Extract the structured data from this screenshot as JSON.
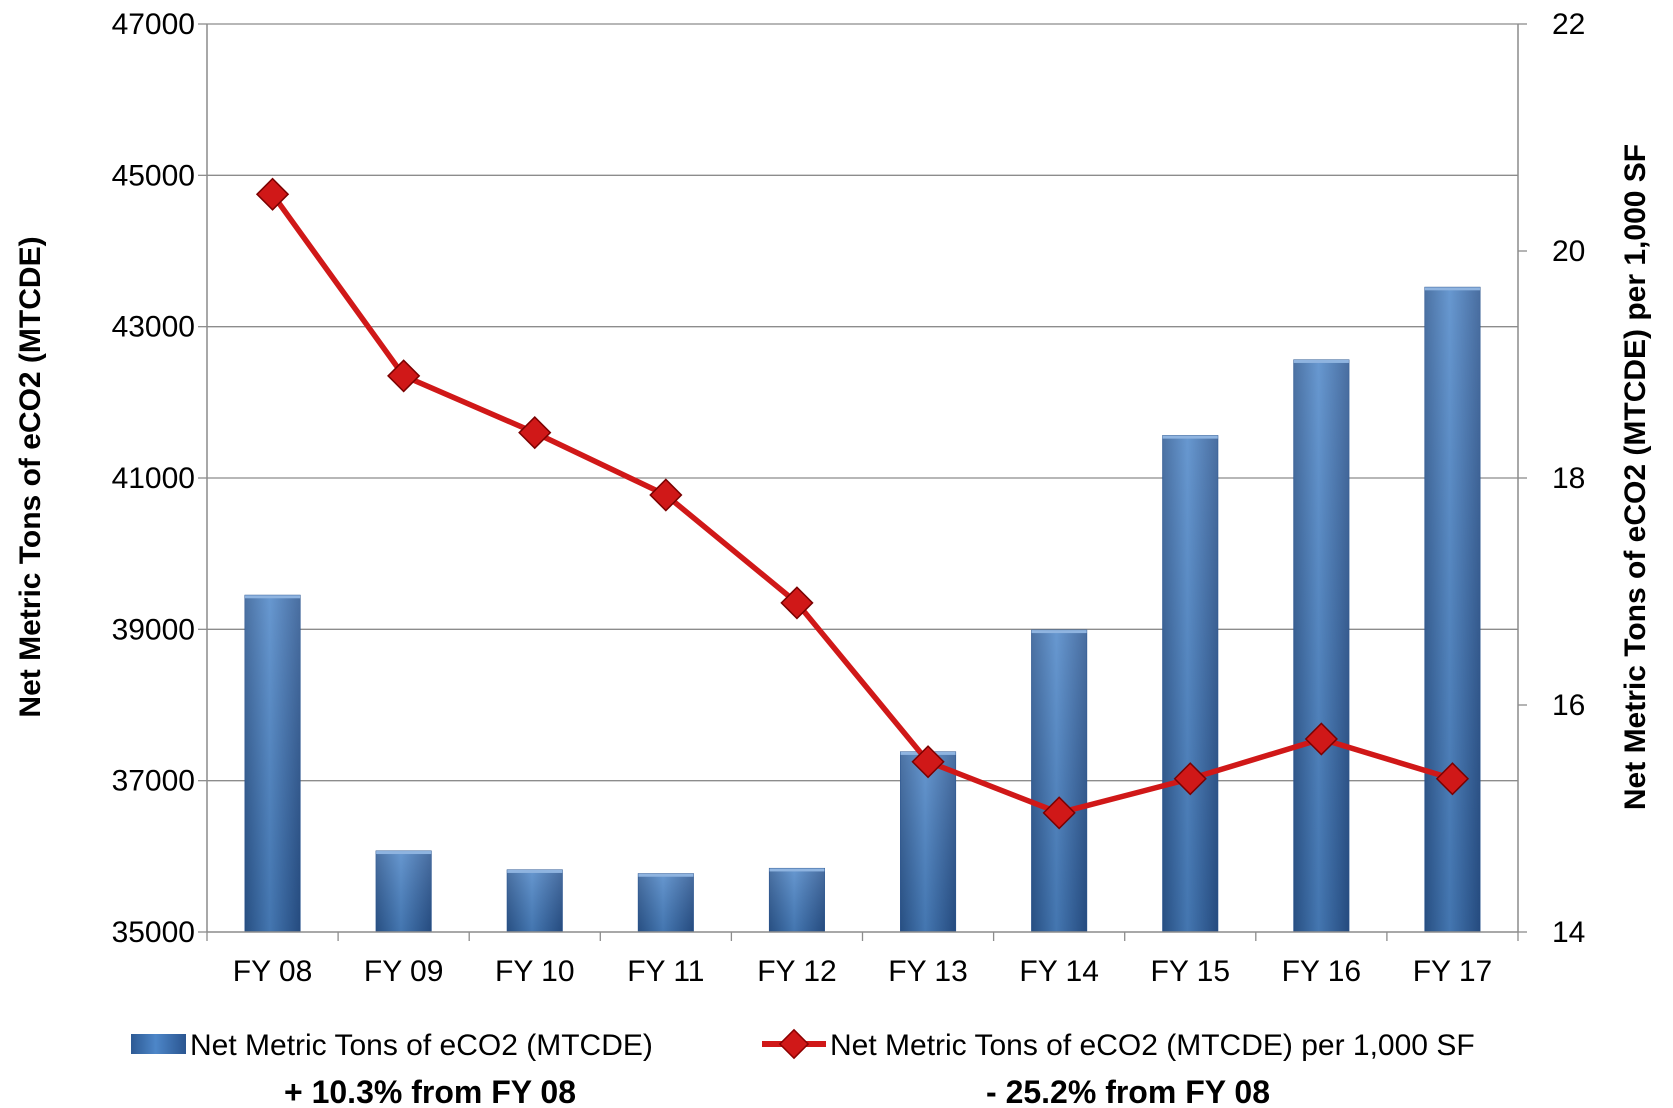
{
  "chart_data": {
    "type": "bar+line",
    "categories": [
      "FY 08",
      "FY 09",
      "FY 10",
      "FY 11",
      "FY 12",
      "FY 13",
      "FY 14",
      "FY 15",
      "FY 16",
      "FY 17"
    ],
    "series": [
      {
        "name": "Net Metric Tons of eCO2 (MTCDE)",
        "type": "bar",
        "axis": "left",
        "color": "#3A6FB0",
        "values": [
          39450,
          36070,
          35820,
          35770,
          35840,
          37380,
          38990,
          41560,
          42560,
          43520
        ]
      },
      {
        "name": "Net Metric Tons of eCO2 (MTCDE) per 1,000 SF",
        "type": "line",
        "axis": "right",
        "color": "#D01818",
        "values": [
          20.5,
          18.9,
          18.4,
          17.85,
          16.9,
          15.5,
          15.05,
          15.35,
          15.7,
          15.35
        ]
      }
    ],
    "ylabel": "Net Metric Tons of eCO2 (MTCDE)",
    "y2label": "Net Metric Tons of eCO2 (MTCDE) per 1,000 SF",
    "ylim": [
      35000,
      47000
    ],
    "y2lim": [
      14,
      22
    ],
    "yticks": [
      "35000",
      "37000",
      "39000",
      "41000",
      "43000",
      "45000",
      "47000"
    ],
    "y2ticks": [
      "14",
      "16",
      "18",
      "20",
      "22"
    ],
    "grid": true,
    "legend_position": "bottom",
    "notes": [
      "+ 10.3% from FY 08",
      "- 25.2% from FY 08"
    ]
  }
}
